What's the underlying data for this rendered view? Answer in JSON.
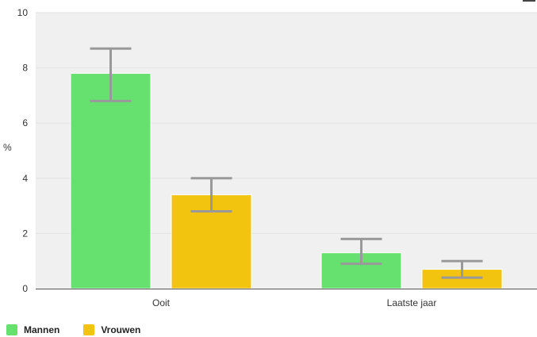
{
  "chart_data": {
    "type": "bar",
    "categories": [
      "Ooit",
      "Laatste jaar"
    ],
    "ylabel": "%",
    "ylim": [
      0,
      10
    ],
    "yticks": [
      0,
      2,
      4,
      6,
      8,
      10
    ],
    "grid": true,
    "legend_position": "bottom-left",
    "series": [
      {
        "name": "Mannen",
        "color": "#66e06f",
        "values": [
          7.8,
          1.3
        ],
        "error_low": [
          6.8,
          0.9
        ],
        "error_high": [
          8.7,
          1.8
        ]
      },
      {
        "name": "Vrouwen",
        "color": "#f2c40f",
        "values": [
          3.4,
          0.7
        ],
        "error_low": [
          2.8,
          0.4
        ],
        "error_high": [
          4.0,
          1.0
        ]
      }
    ]
  }
}
